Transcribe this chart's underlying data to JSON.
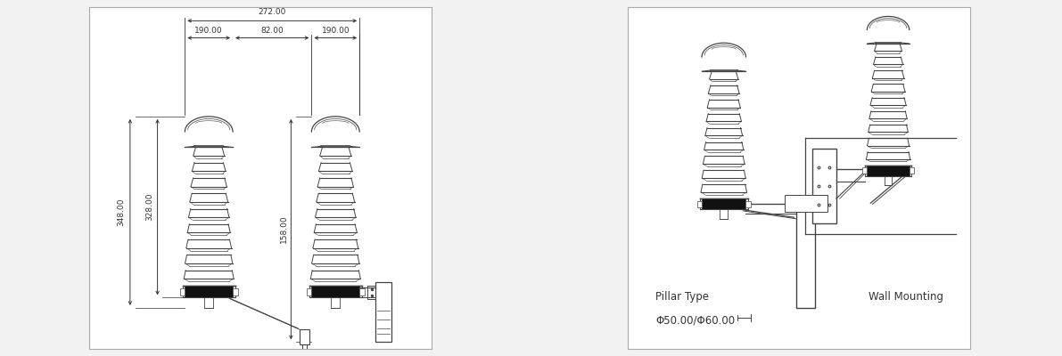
{
  "bg_color": "#f2f2f2",
  "line_color": "#444444",
  "dark_color": "#111111",
  "text_color": "#333333",
  "dim_color": "#333333",
  "labels": {
    "272": "272.00",
    "190a": "190.00",
    "82": "82.00",
    "190b": "190.00",
    "348": "348.00",
    "328": "328.00",
    "158": "158.00",
    "pillar": "Pillar Type",
    "phi": "Φ50.00/Φ60.00",
    "wall": "Wall Mounting"
  }
}
